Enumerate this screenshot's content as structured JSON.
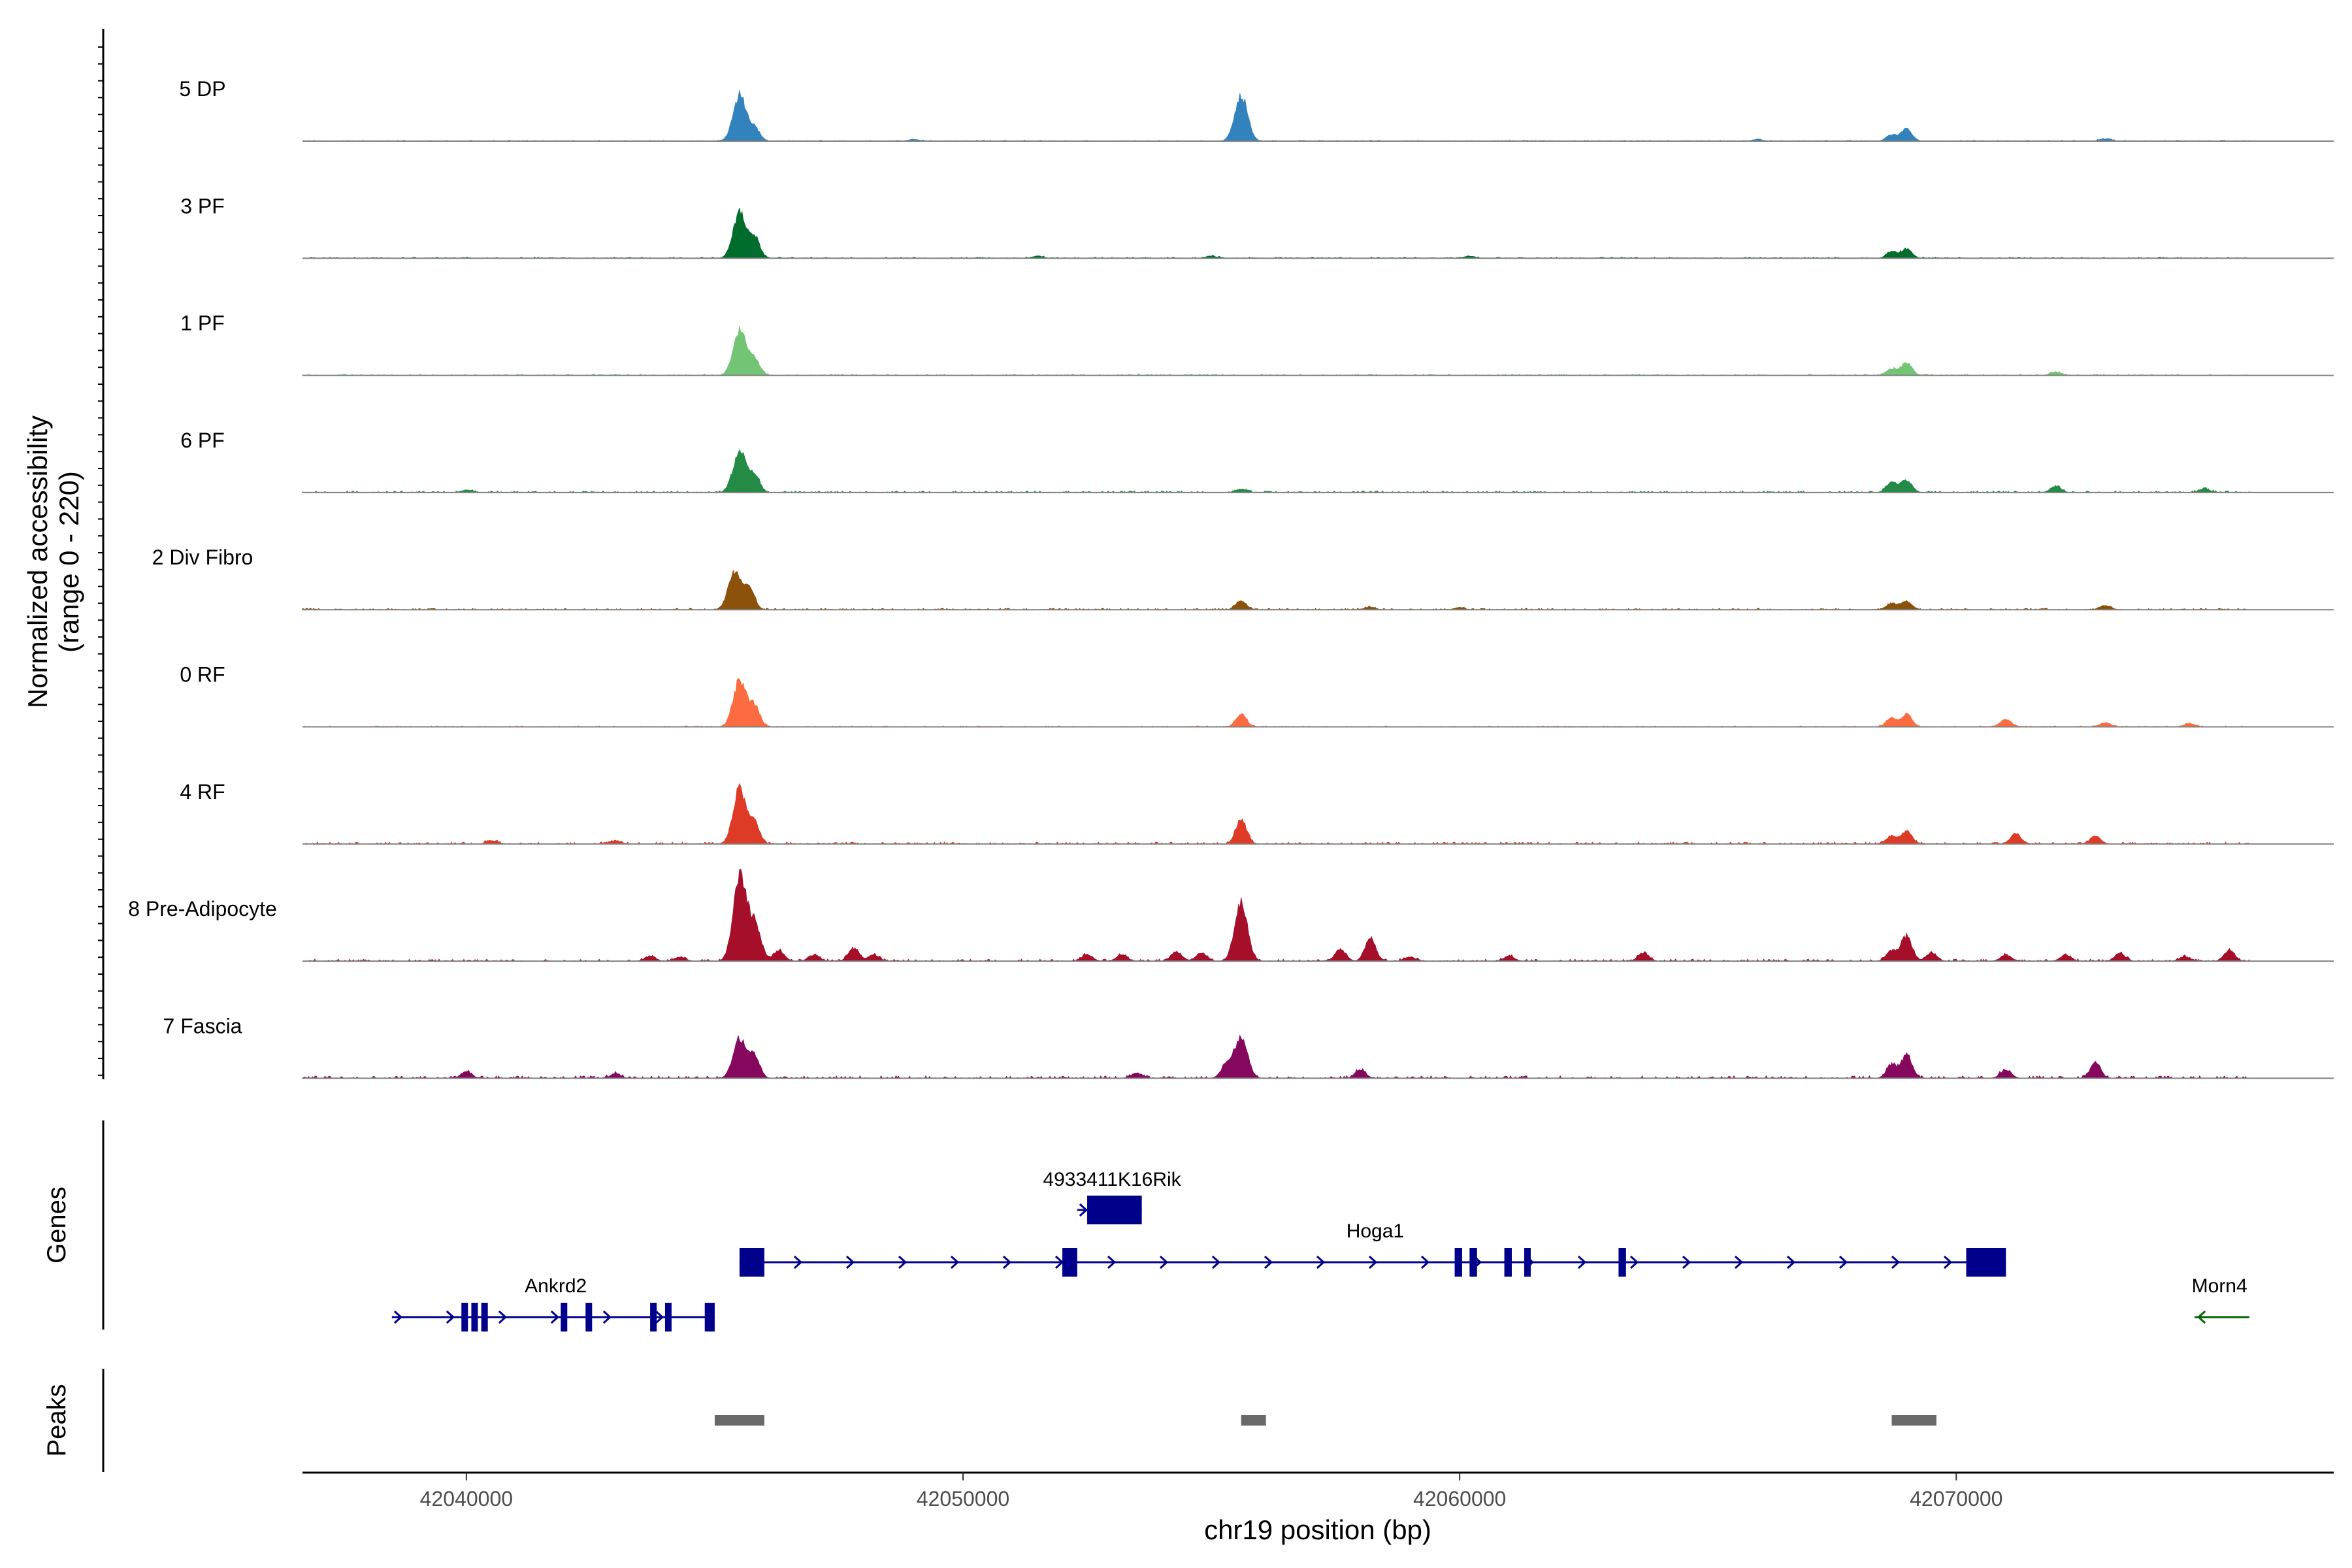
{
  "chart_data": {
    "type": "area",
    "title": "",
    "chromosome": "chr19",
    "xlabel": "chr19 position (bp)",
    "ylabel_line1": "Normalized accessibility",
    "ylabel_line2": "(range 0 - 220)",
    "y_range": [
      0,
      220
    ],
    "xlim": [
      42036700,
      42077600
    ],
    "xticks": [
      42040000,
      42050000,
      42060000,
      42070000
    ],
    "xtick_labels": [
      "42040000",
      "42050000",
      "42060000",
      "42070000"
    ],
    "tracks": [
      {
        "name": "5 DP",
        "color": "#3182bd",
        "peaks": [
          [
            42045500,
            110
          ],
          [
            42045800,
            30
          ],
          [
            42055600,
            110
          ],
          [
            42068700,
            15
          ],
          [
            42069000,
            30
          ],
          [
            42049000,
            4
          ],
          [
            42066000,
            4
          ],
          [
            42073000,
            5
          ]
        ],
        "bg": 2
      },
      {
        "name": "3 PF",
        "color": "#006d2c",
        "peaks": [
          [
            42045500,
            110
          ],
          [
            42045800,
            50
          ],
          [
            42068700,
            15
          ],
          [
            42069000,
            22
          ],
          [
            42055000,
            5
          ],
          [
            42060200,
            5
          ],
          [
            42051500,
            5
          ]
        ],
        "bg": 2.5
      },
      {
        "name": "1 PF",
        "color": "#74c476",
        "peaks": [
          [
            42045500,
            110
          ],
          [
            42045800,
            40
          ],
          [
            42068700,
            15
          ],
          [
            42069000,
            30
          ],
          [
            42072000,
            8
          ]
        ],
        "bg": 2.5
      },
      {
        "name": "6 PF",
        "color": "#238b45",
        "peaks": [
          [
            42045500,
            100
          ],
          [
            42045800,
            40
          ],
          [
            42068700,
            25
          ],
          [
            42069000,
            30
          ],
          [
            42072000,
            15
          ],
          [
            42055600,
            8
          ],
          [
            42040000,
            6
          ],
          [
            42075000,
            8
          ]
        ],
        "bg": 3.5
      },
      {
        "name": "2 Div Fibro",
        "color": "#8c510a",
        "peaks": [
          [
            42045400,
            90
          ],
          [
            42045700,
            50
          ],
          [
            42055600,
            20
          ],
          [
            42068700,
            15
          ],
          [
            42069000,
            20
          ],
          [
            42073000,
            10
          ],
          [
            42058200,
            6
          ],
          [
            42060000,
            5
          ]
        ],
        "bg": 3
      },
      {
        "name": "0 RF",
        "color": "#fc6c40",
        "peaks": [
          [
            42045500,
            110
          ],
          [
            42045800,
            50
          ],
          [
            42055600,
            30
          ],
          [
            42068700,
            20
          ],
          [
            42069000,
            30
          ],
          [
            42071000,
            18
          ],
          [
            42073000,
            10
          ],
          [
            42074700,
            8
          ]
        ],
        "bg": 2
      },
      {
        "name": "4 RF",
        "color": "#de3b26",
        "peaks": [
          [
            42045500,
            130
          ],
          [
            42045800,
            50
          ],
          [
            42055600,
            60
          ],
          [
            42068700,
            20
          ],
          [
            42069000,
            30
          ],
          [
            42071200,
            25
          ],
          [
            42072800,
            18
          ],
          [
            42043000,
            8
          ],
          [
            42040500,
            8
          ]
        ],
        "bg": 4
      },
      {
        "name": "8 Pre-Adipocyte",
        "color": "#a50f2a",
        "peaks": [
          [
            42045500,
            200
          ],
          [
            42045800,
            90
          ],
          [
            42046300,
            25
          ],
          [
            42047000,
            15
          ],
          [
            42047800,
            30
          ],
          [
            42048200,
            15
          ],
          [
            42043700,
            12
          ],
          [
            42044300,
            10
          ],
          [
            42052500,
            15
          ],
          [
            42053200,
            15
          ],
          [
            42054300,
            22
          ],
          [
            42054800,
            20
          ],
          [
            42055600,
            140
          ],
          [
            42057600,
            28
          ],
          [
            42058200,
            55
          ],
          [
            42059000,
            10
          ],
          [
            42061000,
            12
          ],
          [
            42063700,
            20
          ],
          [
            42068700,
            25
          ],
          [
            42069000,
            60
          ],
          [
            42069500,
            20
          ],
          [
            42071000,
            15
          ],
          [
            42072200,
            15
          ],
          [
            42073300,
            18
          ],
          [
            42074600,
            10
          ],
          [
            42075500,
            25
          ]
        ],
        "bg": 4
      },
      {
        "name": "7 Fascia",
        "color": "#85085e",
        "peaks": [
          [
            42045500,
            95
          ],
          [
            42045800,
            55
          ],
          [
            42055600,
            100
          ],
          [
            42055300,
            30
          ],
          [
            42058000,
            20
          ],
          [
            42040000,
            15
          ],
          [
            42068700,
            30
          ],
          [
            42069000,
            55
          ],
          [
            42071000,
            20
          ],
          [
            42072800,
            35
          ],
          [
            42053500,
            12
          ],
          [
            42043000,
            10
          ]
        ],
        "bg": 5
      }
    ],
    "genes_panel_title": "Genes",
    "genes": [
      {
        "name": "Ankrd2",
        "start": 42038500,
        "end": 42045000,
        "strand": "+",
        "row": 3,
        "color": "#00008b",
        "exons": [
          [
            42039900,
            42040000
          ],
          [
            42040100,
            42040200
          ],
          [
            42040300,
            42040400
          ],
          [
            42041900,
            42042000
          ],
          [
            42042400,
            42042500
          ],
          [
            42043700,
            42043800
          ],
          [
            42044000,
            42044100
          ],
          [
            42044800,
            42045000
          ]
        ]
      },
      {
        "name": "Hoga1",
        "start": 42045500,
        "end": 42071000,
        "strand": "+",
        "row": 2,
        "color": "#00008b",
        "exons": [
          [
            42045500,
            42046000
          ],
          [
            42052000,
            42052300
          ],
          [
            42059900,
            42060050
          ],
          [
            42060200,
            42060350
          ],
          [
            42060900,
            42061050
          ],
          [
            42061300,
            42061400
          ],
          [
            42063200,
            42063350
          ],
          [
            42070200,
            42071000
          ]
        ]
      },
      {
        "name": "4933411K16Rik",
        "start": 42052300,
        "end": 42053600,
        "strand": "+",
        "row": 1,
        "color": "#00008b",
        "exons": [
          [
            42052500,
            42053600
          ]
        ]
      },
      {
        "name": "Morn4",
        "start": 42074800,
        "end": 42075900,
        "strand": "-",
        "row": 3,
        "color": "#006400",
        "exons": []
      }
    ],
    "peaks_panel_title": "Peaks",
    "peak_regions": [
      [
        42045000,
        42046000
      ],
      [
        42055600,
        42056100
      ],
      [
        42068700,
        42069600
      ]
    ],
    "peak_region_color": "#696969"
  }
}
